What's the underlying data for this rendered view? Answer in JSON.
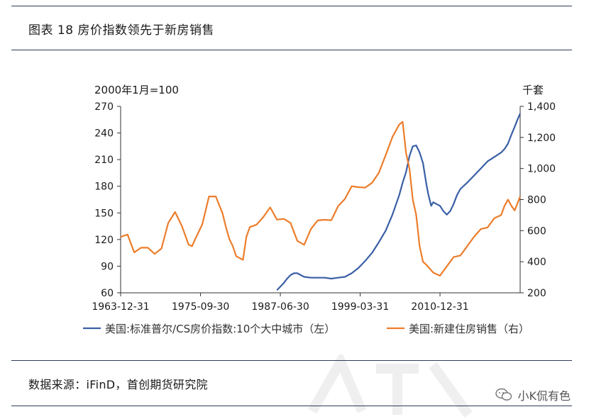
{
  "figure_title": "图表 18 房价指数领先于新房销售",
  "source_text": "数据来源：iFinD，首创期货研究院",
  "watermark_text": "小K侃有色",
  "chart_data": {
    "type": "line",
    "left_axis_unit": "2000年1月=100",
    "right_axis_unit": "千套",
    "left_ylim": [
      60,
      270
    ],
    "left_ticks": [
      "270",
      "240",
      "210",
      "180",
      "150",
      "120",
      "90",
      "60"
    ],
    "right_ylim": [
      200,
      1400
    ],
    "right_ticks": [
      "1,400",
      "1,200",
      "1,000",
      "800",
      "600",
      "400",
      "200"
    ],
    "x_range": [
      1963.99,
      2022.8
    ],
    "x_ticks": [
      "1963-12-31",
      "1975-09-30",
      "1987-06-30",
      "1999-03-31",
      "2010-12-31"
    ],
    "x_tick_values": [
      1963.99,
      1975.75,
      1987.5,
      1999.25,
      2011.0
    ],
    "legend": "bottom",
    "colors": {
      "case_shiller": "#3a5fa5",
      "new_home_sales": "#ec7d2b"
    },
    "series": [
      {
        "name": "美国:标准普尔/CS房价指数:10个大中城市（左）",
        "axis": "left",
        "x": [
          1987.0,
          1987.5,
          1988.0,
          1988.5,
          1989.0,
          1989.5,
          1990.0,
          1990.5,
          1991.0,
          1992.0,
          1993.0,
          1994.0,
          1995.0,
          1996.0,
          1997.0,
          1998.0,
          1999.0,
          2000.0,
          2001.0,
          2002.0,
          2003.0,
          2004.0,
          2005.0,
          2005.5,
          2006.0,
          2006.5,
          2007.0,
          2007.5,
          2008.0,
          2008.5,
          2009.0,
          2009.3,
          2009.7,
          2010.0,
          2010.5,
          2011.0,
          2011.5,
          2012.0,
          2012.5,
          2013.0,
          2013.5,
          2014.0,
          2015.0,
          2016.0,
          2017.0,
          2018.0,
          2019.0,
          2020.0,
          2020.5,
          2021.0,
          2021.5,
          2022.0,
          2022.4,
          2022.8
        ],
        "values": [
          63,
          67,
          71,
          76,
          80,
          82,
          82,
          80,
          78,
          77,
          77,
          77,
          76,
          77,
          78,
          82,
          88,
          96,
          105,
          117,
          130,
          148,
          170,
          184,
          196,
          214,
          225,
          226,
          218,
          206,
          182,
          170,
          158,
          162,
          160,
          158,
          152,
          148,
          152,
          160,
          170,
          177,
          184,
          192,
          200,
          208,
          213,
          218,
          222,
          228,
          238,
          247,
          255,
          262
        ]
      },
      {
        "name": "美国:新建住房销售（右）",
        "axis": "right",
        "x": [
          1964.0,
          1965.0,
          1966.0,
          1967.0,
          1968.0,
          1969.0,
          1970.0,
          1971.0,
          1972.0,
          1973.0,
          1973.5,
          1974.0,
          1974.5,
          1975.0,
          1976.0,
          1977.0,
          1978.0,
          1979.0,
          1979.5,
          1980.0,
          1980.5,
          1981.0,
          1982.0,
          1982.5,
          1983.0,
          1984.0,
          1985.0,
          1986.0,
          1987.0,
          1988.0,
          1989.0,
          1990.0,
          1991.0,
          1992.0,
          1993.0,
          1994.0,
          1995.0,
          1996.0,
          1997.0,
          1998.0,
          1999.0,
          2000.0,
          2001.0,
          2002.0,
          2003.0,
          2004.0,
          2005.0,
          2005.5,
          2006.0,
          2006.5,
          2007.0,
          2007.5,
          2008.0,
          2008.5,
          2009.0,
          2010.0,
          2010.5,
          2011.0,
          2012.0,
          2013.0,
          2014.0,
          2015.0,
          2016.0,
          2017.0,
          2018.0,
          2019.0,
          2020.0,
          2020.5,
          2021.0,
          2021.5,
          2022.0,
          2022.8
        ],
        "values": [
          560,
          575,
          460,
          490,
          490,
          450,
          485,
          650,
          720,
          630,
          570,
          510,
          500,
          549,
          640,
          820,
          820,
          710,
          620,
          545,
          500,
          436,
          412,
          560,
          623,
          639,
          688,
          750,
          671,
          676,
          650,
          534,
          509,
          610,
          666,
          670,
          667,
          757,
          804,
          886,
          880,
          877,
          908,
          973,
          1086,
          1203,
          1283,
          1300,
          1100,
          1000,
          800,
          700,
          500,
          400,
          380,
          330,
          320,
          310,
          370,
          430,
          440,
          500,
          560,
          610,
          620,
          680,
          700,
          760,
          800,
          760,
          730,
          820
        ]
      }
    ]
  }
}
